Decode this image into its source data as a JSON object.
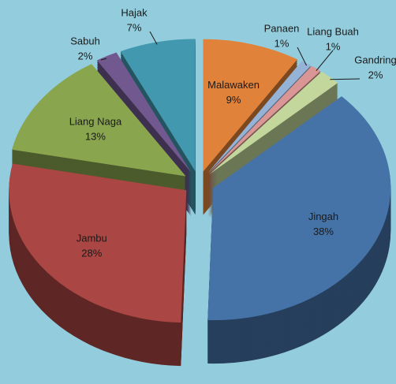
{
  "chart_data": {
    "type": "pie3d",
    "categories": [
      "Malawaken",
      "Panaen",
      "Liang Buah",
      "Gandring",
      "Jingah",
      "Jambu",
      "Liang Naga",
      "Sabuh",
      "Hajak"
    ],
    "values": [
      9,
      1,
      1,
      2,
      38,
      28,
      13,
      2,
      7
    ],
    "value_labels": [
      "9%",
      "1%",
      "1%",
      "2%",
      "38%",
      "28%",
      "13%",
      "2%",
      "7%"
    ],
    "colors": [
      "#E0823A",
      "#95B3D7",
      "#D99694",
      "#C3D69B",
      "#4572A7",
      "#AA4643",
      "#89A54E",
      "#71588F",
      "#4198AF"
    ]
  }
}
